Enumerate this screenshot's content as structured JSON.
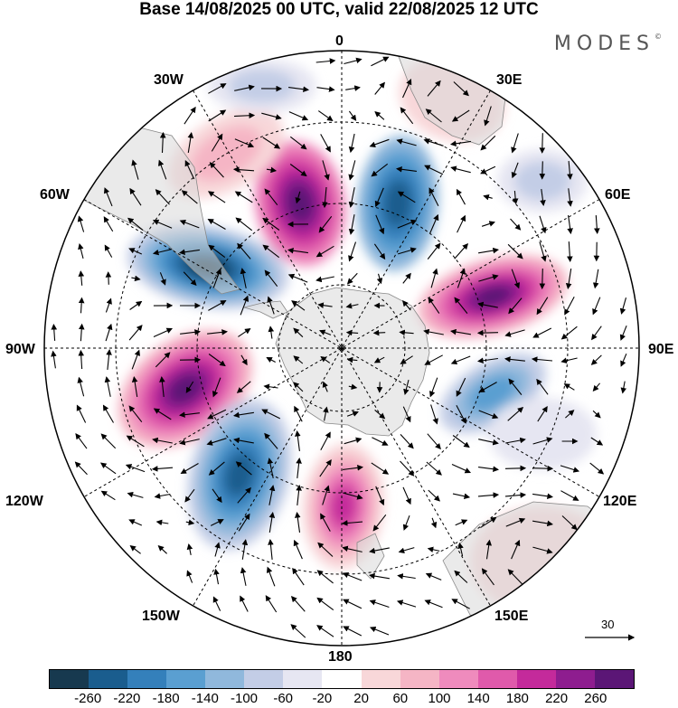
{
  "title": "Base 14/08/2025 00 UTC, valid 22/08/2025 12 UTC",
  "brand": "MODES",
  "brand_mark": "©",
  "longitude_labels": {
    "lon_0": "0",
    "lon_30e": "30E",
    "lon_60e": "60E",
    "lon_90e": "90E",
    "lon_120e": "120E",
    "lon_150e": "150E",
    "lon_180": "180",
    "lon_150w": "150W",
    "lon_120w": "120W",
    "lon_90w": "90W",
    "lon_60w": "60W",
    "lon_30w": "30W"
  },
  "reference_vector": {
    "value": "30"
  },
  "colorbar": {
    "colors": [
      "#17394f",
      "#1a5d8e",
      "#3480bb",
      "#5a9fd1",
      "#90b8dc",
      "#c3cde6",
      "#e6e6f2",
      "#ffffff",
      "#f8d7d9",
      "#f5b5c5",
      "#ef8bbd",
      "#e05aab",
      "#c42a9b",
      "#8e1d8f",
      "#5b1676"
    ],
    "ticks": [
      "-260",
      "-220",
      "-180",
      "-140",
      "-100",
      "-60",
      "-20",
      "20",
      "60",
      "100",
      "140",
      "180",
      "220",
      "260"
    ]
  },
  "icons": [
    "compass-graticule-icon",
    "wind-arrow-icon"
  ]
}
